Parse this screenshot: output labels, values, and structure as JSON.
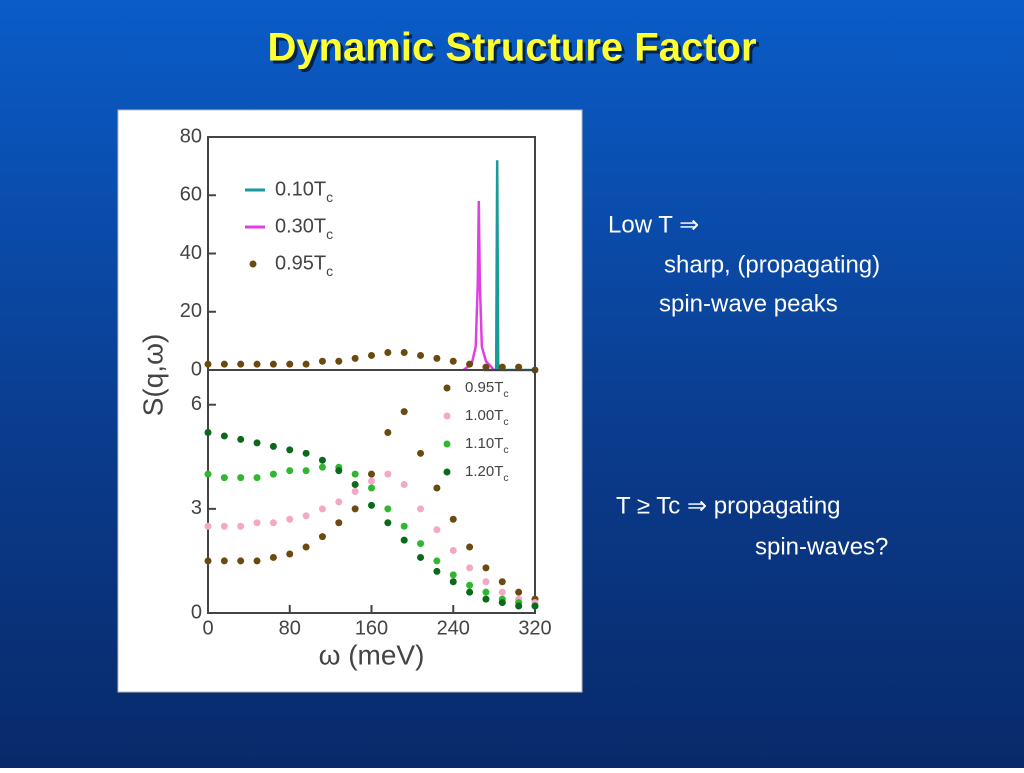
{
  "title": "Dynamic Structure Factor",
  "notes": [
    [
      "Low T ⇒",
      "sharp, (propagating)",
      "spin-wave peaks"
    ],
    [
      "T ≥ Tc ⇒ propagating",
      "spin-waves?"
    ]
  ],
  "chart_data": [
    {
      "type": "line",
      "y_label": "S(q,ω)",
      "xlim": [
        0,
        320
      ],
      "ylim": [
        0,
        80
      ],
      "yticks": [
        0,
        20,
        40,
        60,
        80
      ],
      "legend": "upper left",
      "series": [
        {
          "name": "0.10Tc",
          "color": "#1a9a9a",
          "mode": "lines",
          "x": [
            270,
            282,
            283,
            284,
            320
          ],
          "values": [
            0,
            0,
            72,
            0,
            0
          ]
        },
        {
          "name": "0.30Tc",
          "color": "#e040e0",
          "mode": "lines",
          "x": [
            250,
            258,
            262,
            264,
            265,
            266,
            268,
            272,
            280
          ],
          "values": [
            0,
            2,
            8,
            30,
            58,
            30,
            8,
            3,
            0
          ]
        },
        {
          "name": "0.95Tc",
          "color": "#6b4a10",
          "mode": "markers",
          "x": [
            0,
            16,
            32,
            48,
            64,
            80,
            96,
            112,
            128,
            144,
            160,
            176,
            192,
            208,
            224,
            240,
            256,
            272,
            288,
            304,
            320
          ],
          "values": [
            2,
            2,
            2,
            2,
            2,
            2,
            2,
            3,
            3,
            4,
            5,
            6,
            6,
            5,
            4,
            3,
            2,
            1,
            1,
            1,
            0
          ]
        }
      ]
    },
    {
      "type": "line",
      "x_label": "ω (meV)",
      "xlim": [
        0,
        320
      ],
      "ylim": [
        0,
        7
      ],
      "yticks": [
        0,
        3,
        6
      ],
      "xticks": [
        0,
        80,
        160,
        240,
        320
      ],
      "legend": "upper right",
      "series": [
        {
          "name": "0.95Tc",
          "color": "#6b4a10",
          "mode": "markers",
          "x": [
            0,
            16,
            32,
            48,
            64,
            80,
            96,
            112,
            128,
            144,
            160,
            176,
            192,
            208,
            224,
            240,
            256,
            272,
            288,
            304,
            320
          ],
          "values": [
            1.5,
            1.5,
            1.5,
            1.5,
            1.6,
            1.7,
            1.9,
            2.2,
            2.6,
            3.0,
            4.0,
            5.2,
            5.8,
            4.6,
            3.6,
            2.7,
            1.9,
            1.3,
            0.9,
            0.6,
            0.4
          ]
        },
        {
          "name": "1.00Tc",
          "color": "#f4a8c8",
          "mode": "markers",
          "x": [
            0,
            16,
            32,
            48,
            64,
            80,
            96,
            112,
            128,
            144,
            160,
            176,
            192,
            208,
            224,
            240,
            256,
            272,
            288,
            304,
            320
          ],
          "values": [
            2.5,
            2.5,
            2.5,
            2.6,
            2.6,
            2.7,
            2.8,
            3.0,
            3.2,
            3.5,
            3.8,
            4.0,
            3.7,
            3.0,
            2.4,
            1.8,
            1.3,
            0.9,
            0.6,
            0.4,
            0.3
          ]
        },
        {
          "name": "1.10Tc",
          "color": "#2fb82f",
          "mode": "markers",
          "x": [
            0,
            16,
            32,
            48,
            64,
            80,
            96,
            112,
            128,
            144,
            160,
            176,
            192,
            208,
            224,
            240,
            256,
            272,
            288,
            304,
            320
          ],
          "values": [
            4.0,
            3.9,
            3.9,
            3.9,
            4.0,
            4.1,
            4.1,
            4.2,
            4.2,
            4.0,
            3.6,
            3.0,
            2.5,
            2.0,
            1.5,
            1.1,
            0.8,
            0.6,
            0.4,
            0.3,
            0.2
          ]
        },
        {
          "name": "1.20Tc",
          "color": "#0a6a1a",
          "mode": "markers",
          "x": [
            0,
            16,
            32,
            48,
            64,
            80,
            96,
            112,
            128,
            144,
            160,
            176,
            192,
            208,
            224,
            240,
            256,
            272,
            288,
            304,
            320
          ],
          "values": [
            5.2,
            5.1,
            5.0,
            4.9,
            4.8,
            4.7,
            4.6,
            4.4,
            4.1,
            3.7,
            3.1,
            2.6,
            2.1,
            1.6,
            1.2,
            0.9,
            0.6,
            0.4,
            0.3,
            0.2,
            0.2
          ]
        }
      ]
    }
  ]
}
